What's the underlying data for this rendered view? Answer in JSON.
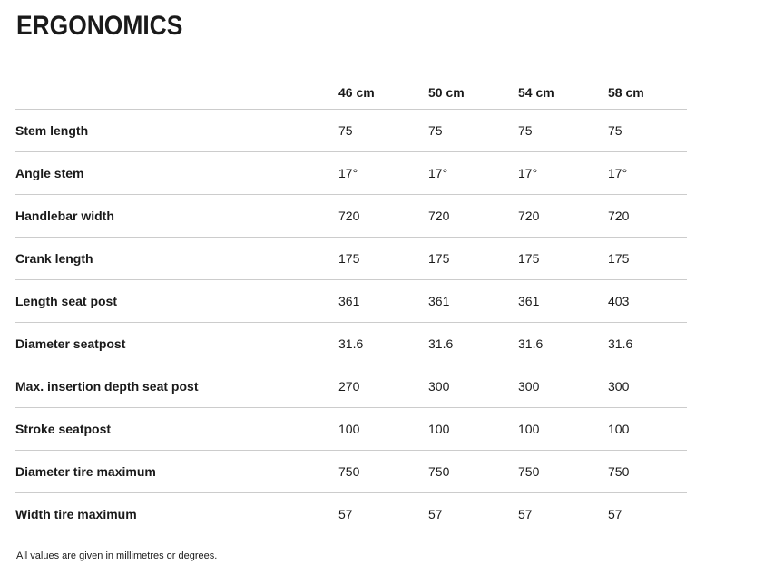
{
  "page": {
    "title": "ERGONOMICS",
    "footnote": "All values are given in millimetres or degrees."
  },
  "table": {
    "columns": [
      "46 cm",
      "50 cm",
      "54 cm",
      "58 cm"
    ],
    "rows": [
      {
        "label": "Stem length",
        "values": [
          "75",
          "75",
          "75",
          "75"
        ]
      },
      {
        "label": "Angle stem",
        "values": [
          "17°",
          "17°",
          "17°",
          "17°"
        ]
      },
      {
        "label": "Handlebar width",
        "values": [
          "720",
          "720",
          "720",
          "720"
        ]
      },
      {
        "label": "Crank length",
        "values": [
          "175",
          "175",
          "175",
          "175"
        ]
      },
      {
        "label": "Length seat post",
        "values": [
          "361",
          "361",
          "361",
          "403"
        ]
      },
      {
        "label": "Diameter seatpost",
        "values": [
          "31.6",
          "31.6",
          "31.6",
          "31.6"
        ]
      },
      {
        "label": "Max. insertion depth seat post",
        "values": [
          "270",
          "300",
          "300",
          "300"
        ]
      },
      {
        "label": "Stroke seatpost",
        "values": [
          "100",
          "100",
          "100",
          "100"
        ]
      },
      {
        "label": "Diameter tire maximum",
        "values": [
          "750",
          "750",
          "750",
          "750"
        ]
      },
      {
        "label": "Width tire maximum",
        "values": [
          "57",
          "57",
          "57",
          "57"
        ]
      }
    ]
  },
  "colors": {
    "text": "#1a1a1a",
    "divider": "#cccccc",
    "background": "#ffffff"
  }
}
